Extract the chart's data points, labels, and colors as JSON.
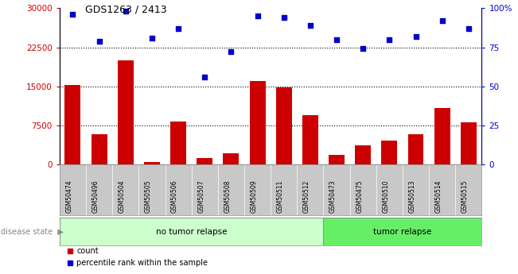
{
  "title": "GDS1263 / 2413",
  "samples": [
    "GSM50474",
    "GSM50496",
    "GSM50504",
    "GSM50505",
    "GSM50506",
    "GSM50507",
    "GSM50508",
    "GSM50509",
    "GSM50511",
    "GSM50512",
    "GSM50473",
    "GSM50475",
    "GSM50510",
    "GSM50513",
    "GSM50514",
    "GSM50515"
  ],
  "counts": [
    15200,
    5800,
    20000,
    400,
    8200,
    1200,
    2200,
    16000,
    14800,
    9500,
    1800,
    3700,
    4600,
    5800,
    10800,
    8100
  ],
  "percentiles": [
    96,
    79,
    98,
    81,
    87,
    56,
    72,
    95,
    94,
    89,
    80,
    74,
    80,
    82,
    92,
    87
  ],
  "bar_color": "#cc0000",
  "dot_color": "#0000cc",
  "ylim_left": [
    0,
    30000
  ],
  "ylim_right": [
    0,
    100
  ],
  "yticks_left": [
    0,
    7500,
    15000,
    22500,
    30000
  ],
  "yticks_right": [
    0,
    25,
    50,
    75,
    100
  ],
  "ytick_labels_left": [
    "0",
    "7500",
    "15000",
    "22500",
    "30000"
  ],
  "ytick_labels_right": [
    "0",
    "25",
    "50",
    "75",
    "100%"
  ],
  "grid_values": [
    7500,
    15000,
    22500
  ],
  "no_tumor_count": 10,
  "tumor_count": 6,
  "no_tumor_label": "no tumor relapse",
  "tumor_label": "tumor relapse",
  "disease_state_label": "disease state",
  "legend_count_label": "count",
  "legend_percentile_label": "percentile rank within the sample",
  "no_tumor_color": "#ccffcc",
  "tumor_color": "#66ee66",
  "tick_area_color": "#c8c8c8"
}
